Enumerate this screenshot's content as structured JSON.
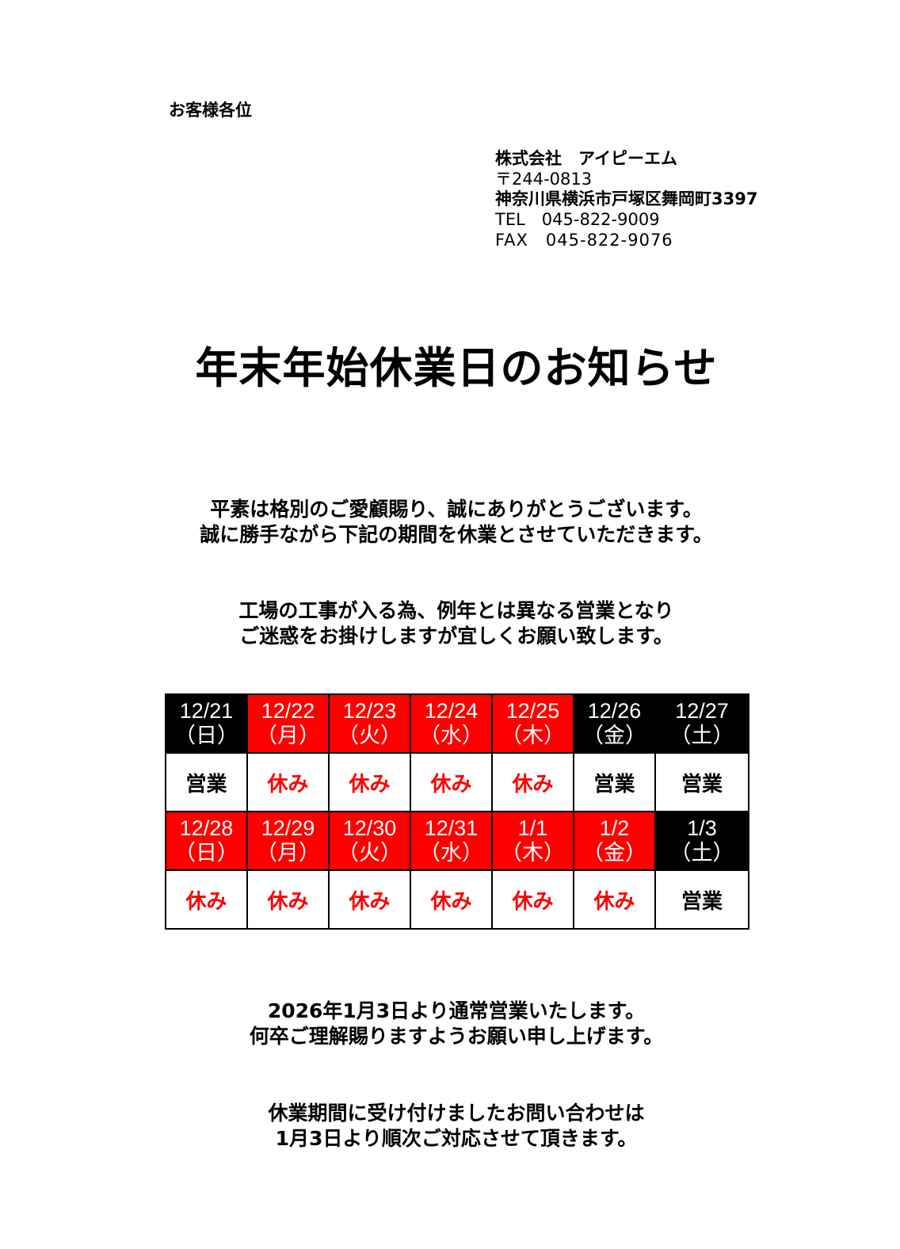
{
  "addressee": "お客様各位",
  "company": {
    "name": "株式会社　アイピーエム",
    "postal": "〒244-0813",
    "address": "神奈川県横浜市戸塚区舞岡町3397",
    "tel": "TEL　045-822-9009",
    "fax": "FAX　045-822-9076"
  },
  "title": "年末年始休業日のお知らせ",
  "paragraphs": [
    [
      "平素は格別のご愛顧賜り、誠にありがとうございます。",
      "誠に勝手ながら下記の期間を休業とさせていただきます。"
    ],
    [
      "工場の工事が入る為、例年とは異なる営業となり",
      "ご迷惑をお掛けしますが宜しくお願い致します。"
    ],
    [
      "2026年1月3日より通常営業いたします。",
      "何卒ご理解賜りますようお願い申し上げます。"
    ],
    [
      "休業期間に受け付けましたお問い合わせは",
      "1月3日より順次ご対応させて頂きます。"
    ]
  ],
  "colors": {
    "closed": "#ff0000",
    "open": "#000000"
  },
  "calendar": [
    [
      {
        "date": "12/21",
        "day": "（日）",
        "status": "営業",
        "closed": false
      },
      {
        "date": "12/22",
        "day": "（月）",
        "status": "休み",
        "closed": true
      },
      {
        "date": "12/23",
        "day": "（火）",
        "status": "休み",
        "closed": true
      },
      {
        "date": "12/24",
        "day": "（水）",
        "status": "休み",
        "closed": true
      },
      {
        "date": "12/25",
        "day": "（木）",
        "status": "休み",
        "closed": true
      },
      {
        "date": "12/26",
        "day": "（金）",
        "status": "営業",
        "closed": false
      },
      {
        "date": "12/27",
        "day": "（土）",
        "status": "営業",
        "closed": false
      }
    ],
    [
      {
        "date": "12/28",
        "day": "（日）",
        "status": "休み",
        "closed": true
      },
      {
        "date": "12/29",
        "day": "（月）",
        "status": "休み",
        "closed": true
      },
      {
        "date": "12/30",
        "day": "（火）",
        "status": "休み",
        "closed": true
      },
      {
        "date": "12/31",
        "day": "（水）",
        "status": "休み",
        "closed": true
      },
      {
        "date": "1/1",
        "day": "（木）",
        "status": "休み",
        "closed": true
      },
      {
        "date": "1/2",
        "day": "（金）",
        "status": "休み",
        "closed": true
      },
      {
        "date": "1/3",
        "day": "（土）",
        "status": "営業",
        "closed": false
      }
    ]
  ]
}
